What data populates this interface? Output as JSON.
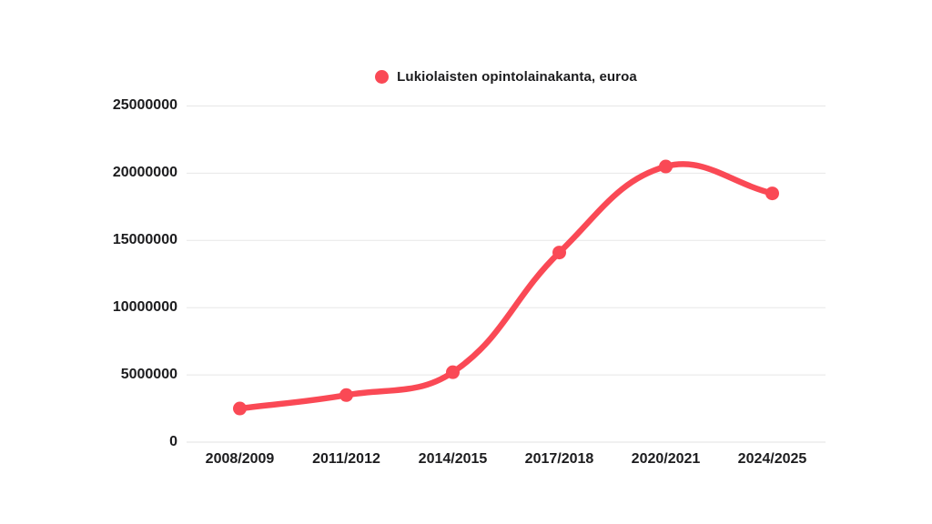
{
  "page": {
    "background_color": "#ffffff",
    "text_color": "#1c1c1e"
  },
  "chart_data": {
    "type": "line",
    "title": "",
    "legend": {
      "label": "Lukiolaisten opintolainakanta, euroa",
      "marker_color": "#fa4955",
      "position": "top-center"
    },
    "categories": [
      "2008/2009",
      "2011/2012",
      "2014/2015",
      "2017/2018",
      "2020/2021",
      "2024/2025"
    ],
    "series": [
      {
        "name": "Lukiolaisten opintolainakanta, euroa",
        "color": "#fa4955",
        "values": [
          2500000,
          3500000,
          5200000,
          14100000,
          20500000,
          18500000
        ]
      }
    ],
    "ylim": [
      0,
      25000000
    ],
    "yticks": [
      0,
      5000000,
      10000000,
      15000000,
      20000000,
      25000000
    ],
    "ytick_labels": [
      "0",
      "5000000",
      "10000000",
      "15000000",
      "20000000",
      "25000000"
    ],
    "grid": true,
    "gridline_color": "#e7e7e7",
    "axis_line_color": "#e0e0e0",
    "line_tension": 0.4,
    "line_width": 6.5,
    "point_radius": 7.5,
    "smooth": true,
    "legend_visible": true
  }
}
